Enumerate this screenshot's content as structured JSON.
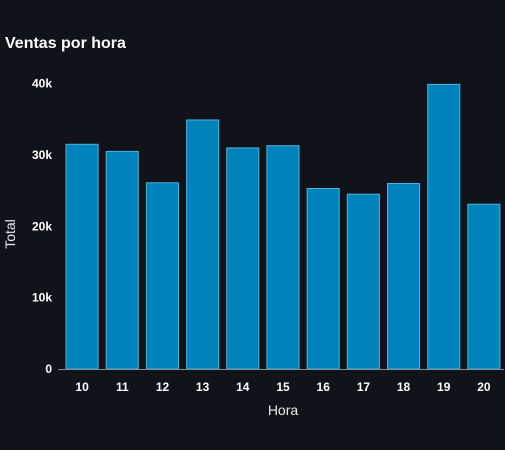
{
  "chart_data": {
    "type": "bar",
    "title": "Ventas por hora",
    "xlabel": "Hora",
    "ylabel": "Total",
    "categories": [
      "10",
      "11",
      "12",
      "13",
      "14",
      "15",
      "16",
      "17",
      "18",
      "19",
      "20"
    ],
    "values": [
      31500,
      30500,
      26100,
      34900,
      31000,
      31300,
      25300,
      24500,
      26000,
      39900,
      23100
    ],
    "ylim": [
      0,
      45000
    ],
    "yticks": [
      0,
      10000,
      20000,
      30000,
      40000
    ],
    "ytick_labels": [
      "0",
      "10k",
      "20k",
      "30k",
      "40k"
    ],
    "grid": false,
    "colors": {
      "bar_fill": "#0083bb",
      "bar_stroke": "#4fb3dc",
      "background": "#11131a",
      "axis": "#888c94"
    }
  }
}
